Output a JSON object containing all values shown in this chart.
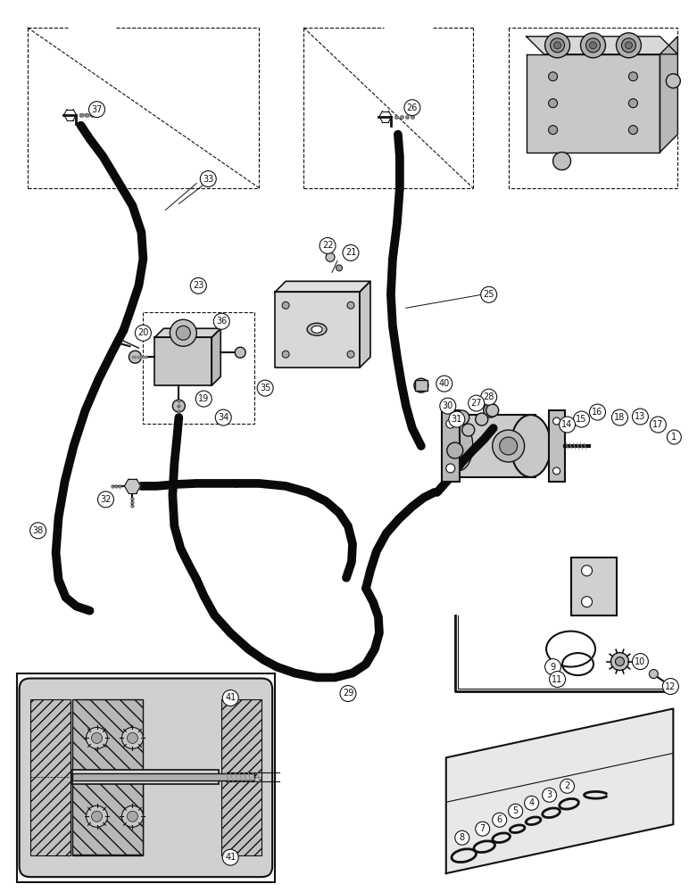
{
  "bg_color": "#ffffff",
  "line_color": "#111111",
  "hose_color": "#0a0a0a",
  "hose_lw": 7,
  "figsize": [
    7.72,
    10.0
  ],
  "dpi": 100,
  "callout_r": 9,
  "callout_fs": 7
}
